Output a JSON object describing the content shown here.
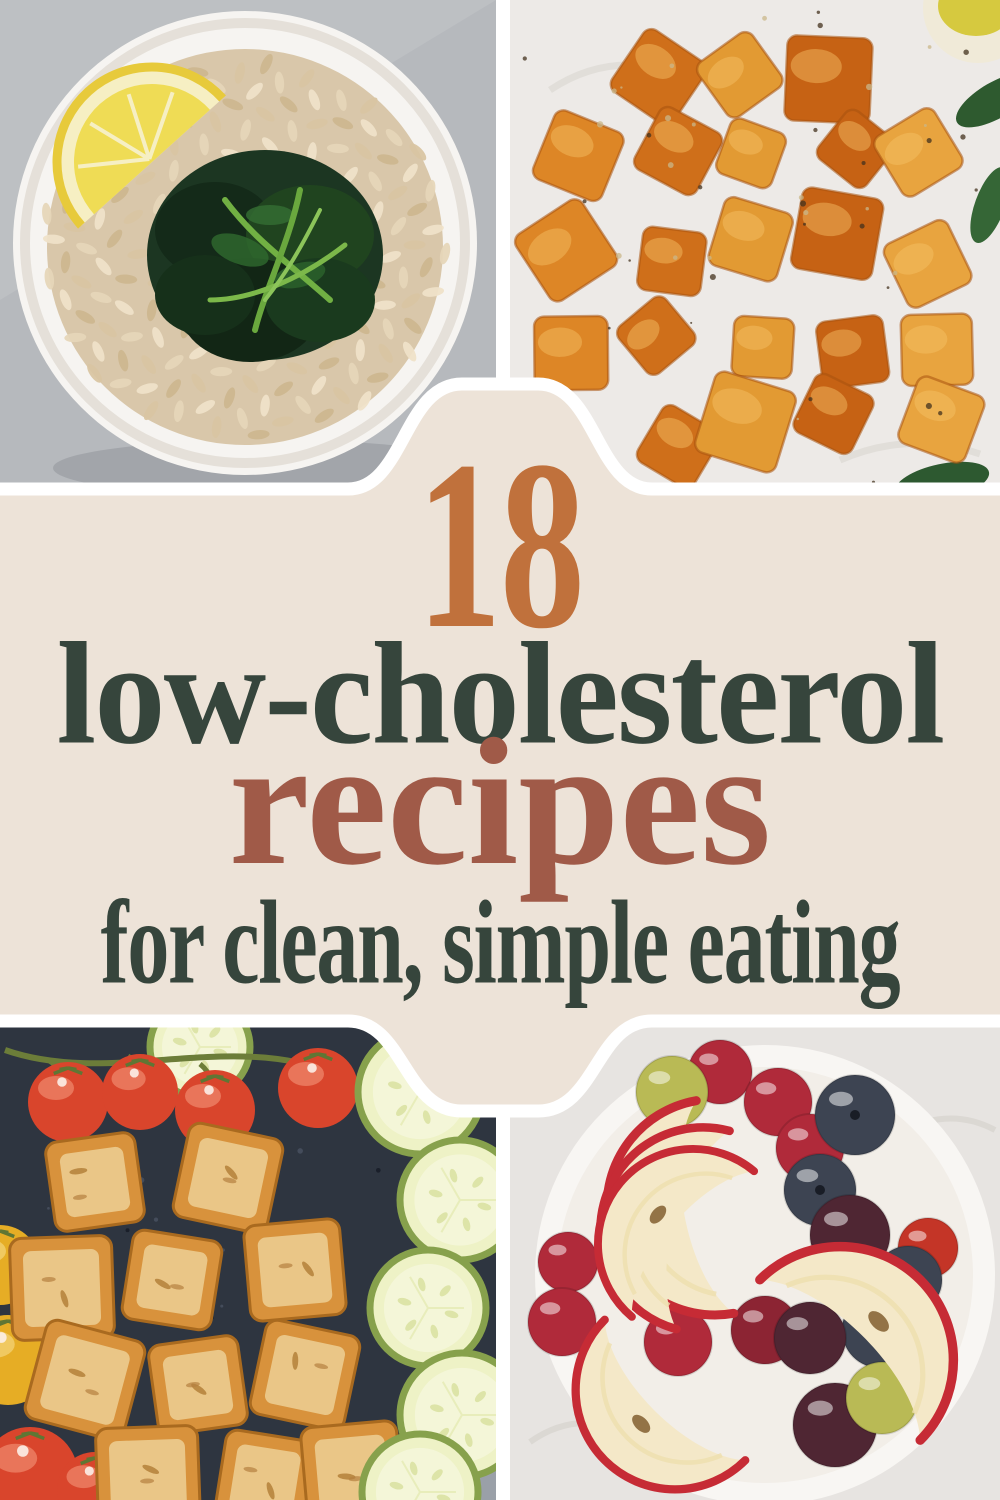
{
  "banner": {
    "count": "18",
    "title_line1": "low-cholesterol",
    "title_line2": "recipes",
    "subtitle": "for clean, simple eating",
    "colors": {
      "background": "#ede3d8",
      "outline": "#ffffff",
      "count_text": "#c0713c",
      "title_text": "#36453c",
      "accent_text": "#a05a48"
    }
  },
  "photos": {
    "top_left": {
      "alt": "Bowl of brown rice topped with sauteed spinach and a lemon wedge"
    },
    "top_right": {
      "alt": "Roasted sweet potato cubes seasoned with pepper on a white table"
    },
    "bottom_left": {
      "alt": "Dark sheet pan with baked tofu cubes, vine tomatoes and zucchini slices"
    },
    "bottom_right": {
      "alt": "White bowl of apple slices, grapes and blueberries"
    }
  }
}
